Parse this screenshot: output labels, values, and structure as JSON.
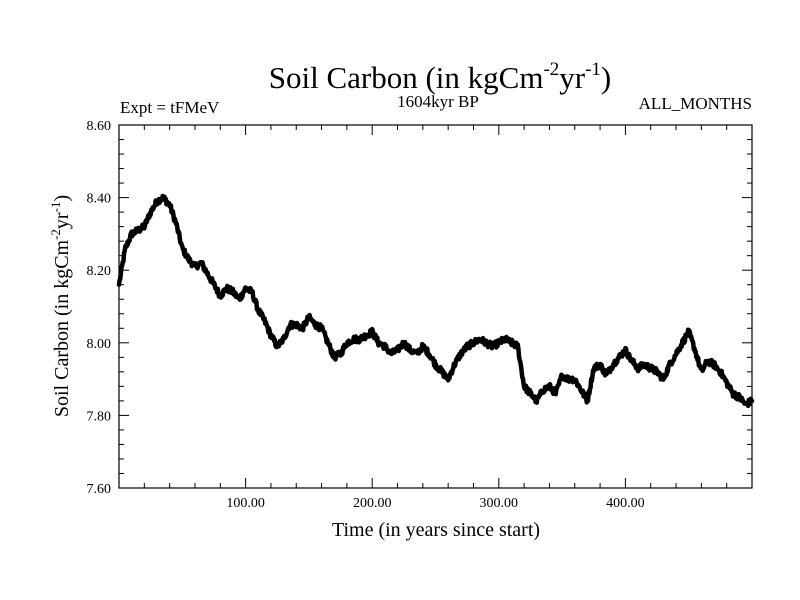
{
  "chart_data": {
    "type": "line",
    "title": {
      "main": "Soil Carbon (in kgCm",
      "sup1": "-2",
      "mid": "yr",
      "sup2": "-1",
      "end": ")"
    },
    "subtitle_left": "Expt = tFMeV",
    "subtitle_center": "1604kyr BP",
    "subtitle_right": "ALL_MONTHS",
    "xlabel": "Time (in years since start)",
    "ylabel": {
      "main": "Soil Carbon (in kgCm",
      "sup1": "-2",
      "mid": "yr",
      "sup2": "-1",
      "end": ")"
    },
    "xlim": [
      0,
      500
    ],
    "ylim": [
      7.6,
      8.6
    ],
    "x_ticks": [
      "100.00",
      "200.00",
      "300.00",
      "400.00"
    ],
    "y_ticks": [
      "7.60",
      "7.80",
      "8.00",
      "8.20",
      "8.40",
      "8.60"
    ],
    "series": [
      {
        "name": "Soil Carbon",
        "x": [
          0,
          5,
          10,
          15,
          20,
          25,
          30,
          35,
          40,
          45,
          50,
          55,
          60,
          65,
          70,
          75,
          80,
          85,
          90,
          95,
          100,
          105,
          110,
          115,
          120,
          125,
          130,
          135,
          140,
          145,
          150,
          155,
          160,
          165,
          170,
          175,
          180,
          185,
          190,
          195,
          200,
          205,
          210,
          215,
          220,
          225,
          230,
          235,
          240,
          245,
          250,
          255,
          260,
          265,
          270,
          275,
          280,
          285,
          290,
          295,
          300,
          305,
          310,
          315,
          320,
          325,
          330,
          335,
          340,
          345,
          350,
          355,
          360,
          365,
          370,
          375,
          380,
          385,
          390,
          395,
          400,
          405,
          410,
          415,
          420,
          425,
          430,
          435,
          440,
          445,
          450,
          455,
          460,
          465,
          470,
          475,
          480,
          485,
          490,
          495,
          500
        ],
        "y": [
          8.16,
          8.26,
          8.3,
          8.31,
          8.32,
          8.36,
          8.39,
          8.4,
          8.38,
          8.33,
          8.26,
          8.23,
          8.21,
          8.22,
          8.19,
          8.16,
          8.13,
          8.15,
          8.14,
          8.12,
          8.15,
          8.14,
          8.09,
          8.06,
          8.02,
          7.99,
          8.01,
          8.05,
          8.05,
          8.04,
          8.07,
          8.05,
          8.04,
          8.0,
          7.96,
          7.97,
          8.0,
          8.01,
          8.01,
          8.02,
          8.03,
          8.0,
          7.99,
          7.97,
          7.98,
          8.0,
          7.98,
          7.97,
          7.99,
          7.97,
          7.94,
          7.92,
          7.9,
          7.94,
          7.97,
          7.99,
          8.0,
          8.01,
          8.0,
          7.99,
          8.0,
          8.01,
          8.0,
          7.99,
          7.88,
          7.86,
          7.84,
          7.87,
          7.88,
          7.86,
          7.91,
          7.9,
          7.9,
          7.87,
          7.84,
          7.93,
          7.94,
          7.91,
          7.94,
          7.96,
          7.98,
          7.95,
          7.93,
          7.94,
          7.93,
          7.92,
          7.9,
          7.94,
          7.97,
          8.0,
          8.03,
          7.98,
          7.92,
          7.95,
          7.94,
          7.92,
          7.89,
          7.86,
          7.85,
          7.83,
          7.84
        ]
      }
    ]
  }
}
